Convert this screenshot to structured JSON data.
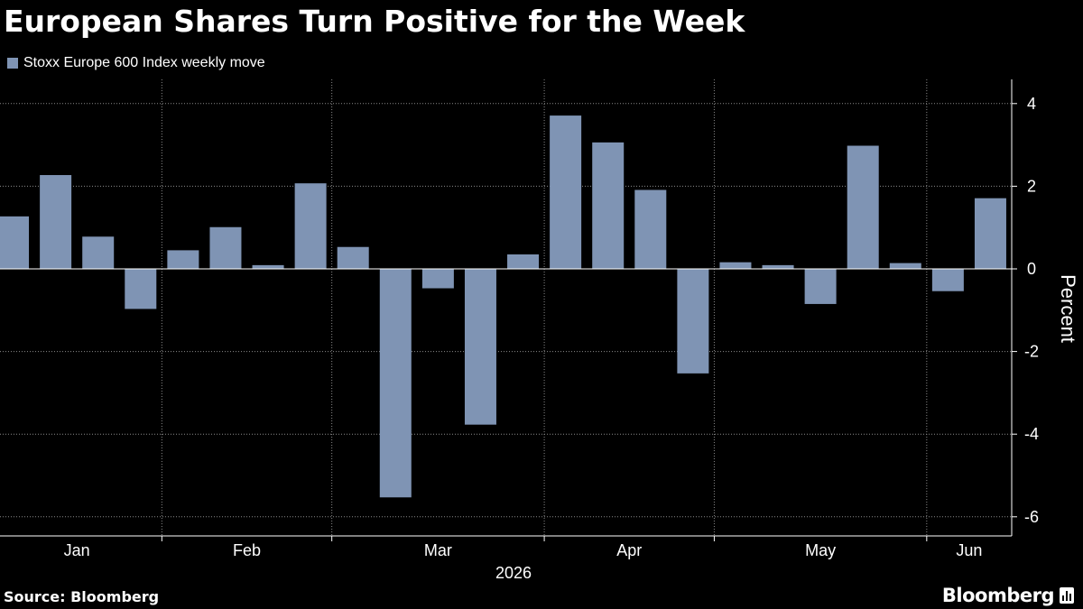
{
  "title": "European Shares Turn Positive for the Week",
  "source": "Source: Bloomberg",
  "brand": "Bloomberg",
  "colors": {
    "bar": "#7f94b4",
    "grid": "#8a8a8a",
    "background": "#000000",
    "text": "#ffffff"
  },
  "chart_data": {
    "type": "bar",
    "ylabel": "Percent",
    "xlabel": "2026",
    "ylim": [
      -6.5,
      4.5
    ],
    "yticks": [
      4,
      2,
      0,
      -2,
      -4,
      -6
    ],
    "ytick_labels": [
      "4",
      "2",
      "0",
      "-2",
      "-4",
      "-6"
    ],
    "month_labels": [
      "Jan",
      "Feb",
      "Mar",
      "Apr",
      "May",
      "Jun"
    ],
    "grid": true,
    "legend_position": "top-left",
    "series": [
      {
        "name": "Stoxx Europe 600 Index weekly move",
        "values": [
          1.27,
          2.27,
          0.78,
          -0.97,
          0.45,
          1.01,
          0.09,
          2.07,
          0.53,
          -5.53,
          -0.47,
          -3.77,
          0.35,
          3.71,
          3.06,
          1.91,
          -2.53,
          0.16,
          0.09,
          -0.85,
          2.98,
          0.14,
          -0.54,
          1.71
        ]
      }
    ]
  }
}
